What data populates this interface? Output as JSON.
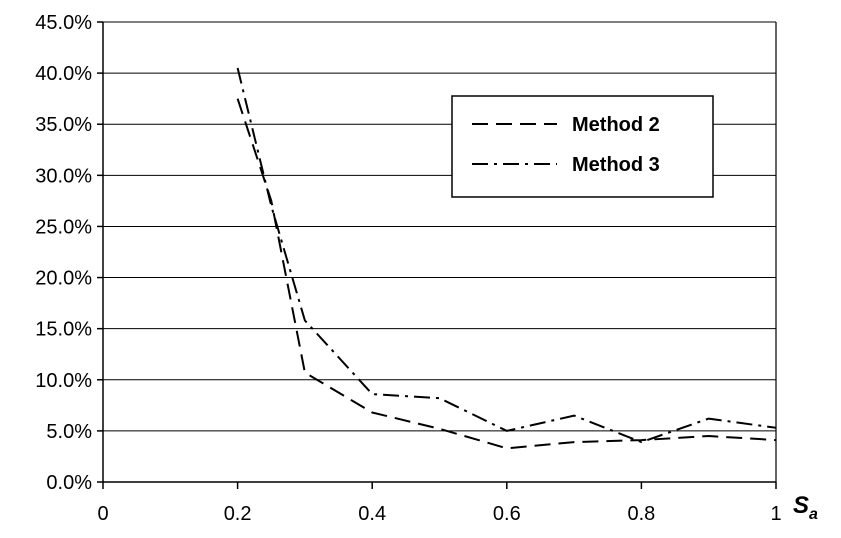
{
  "chart_data": {
    "type": "line",
    "title": "",
    "xlabel": {
      "main": "S",
      "sub": "a"
    },
    "ylabel": "",
    "xlim": [
      0,
      1
    ],
    "ylim": [
      0,
      45
    ],
    "x_ticks": [
      "0",
      "0.2",
      "0.4",
      "0.6",
      "0.8",
      "1"
    ],
    "x_tick_values": [
      0,
      0.2,
      0.4,
      0.6,
      0.8,
      1
    ],
    "y_ticks": [
      "0.0%",
      "5.0%",
      "10.0%",
      "15.0%",
      "20.0%",
      "25.0%",
      "30.0%",
      "35.0%",
      "40.0%",
      "45.0%"
    ],
    "y_tick_values": [
      0,
      5,
      10,
      15,
      20,
      25,
      30,
      35,
      40,
      45
    ],
    "grid": "horizontal",
    "legend_position": "top-right",
    "series": [
      {
        "name": "Method 2",
        "style": "dashed",
        "x": [
          0.2,
          0.25,
          0.3,
          0.4,
          0.5,
          0.6,
          0.7,
          0.8,
          0.9,
          1.0
        ],
        "y": [
          37.5,
          27.5,
          10.7,
          6.8,
          5.2,
          3.3,
          3.9,
          4.1,
          4.5,
          4.1
        ]
      },
      {
        "name": "Method 3",
        "style": "dash-dot",
        "x": [
          0.2,
          0.25,
          0.3,
          0.4,
          0.5,
          0.6,
          0.7,
          0.8,
          0.9,
          1.0
        ],
        "y": [
          40.5,
          27.0,
          15.8,
          8.6,
          8.2,
          5.0,
          6.5,
          3.9,
          6.2,
          5.3
        ]
      }
    ]
  }
}
